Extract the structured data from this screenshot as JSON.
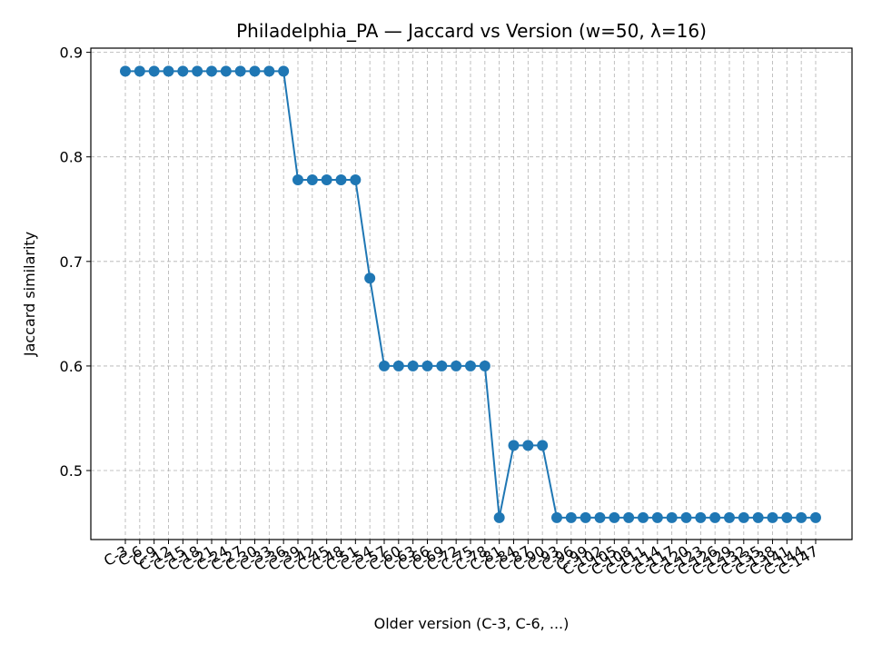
{
  "chart_data": {
    "type": "line",
    "title": "Philadelphia_PA — Jaccard vs Version (w=50, λ=16)",
    "xlabel": "Older version (C-3, C-6, ...)",
    "ylabel": "Jaccard similarity",
    "categories": [
      "C-3",
      "C-6",
      "C-9",
      "C-12",
      "C-15",
      "C-18",
      "C-21",
      "C-24",
      "C-27",
      "C-30",
      "C-33",
      "C-36",
      "C-39",
      "C-42",
      "C-45",
      "C-48",
      "C-51",
      "C-54",
      "C-57",
      "C-60",
      "C-63",
      "C-66",
      "C-69",
      "C-72",
      "C-75",
      "C-78",
      "C-81",
      "C-84",
      "C-87",
      "C-90",
      "C-93",
      "C-96",
      "C-99",
      "C-102",
      "C-105",
      "C-108",
      "C-111",
      "C-114",
      "C-117",
      "C-120",
      "C-123",
      "C-126",
      "C-129",
      "C-132",
      "C-135",
      "C-138",
      "C-141",
      "C-144",
      "C-147"
    ],
    "series": [
      {
        "values": [
          0.882,
          0.882,
          0.882,
          0.882,
          0.882,
          0.882,
          0.882,
          0.882,
          0.882,
          0.882,
          0.882,
          0.882,
          0.778,
          0.778,
          0.778,
          0.778,
          0.778,
          0.684,
          0.6,
          0.6,
          0.6,
          0.6,
          0.6,
          0.6,
          0.6,
          0.6,
          0.455,
          0.524,
          0.524,
          0.524,
          0.455,
          0.455,
          0.455,
          0.455,
          0.455,
          0.455,
          0.455,
          0.455,
          0.455,
          0.455,
          0.455,
          0.455,
          0.455,
          0.455,
          0.455,
          0.455,
          0.455,
          0.455,
          0.455
        ],
        "color": "#1f77b4"
      }
    ],
    "yticks": [
      "0.5",
      "0.6",
      "0.7",
      "0.8",
      "0.9"
    ],
    "ylim": [
      0.434,
      0.904
    ],
    "grid": true,
    "marker": "circle"
  }
}
